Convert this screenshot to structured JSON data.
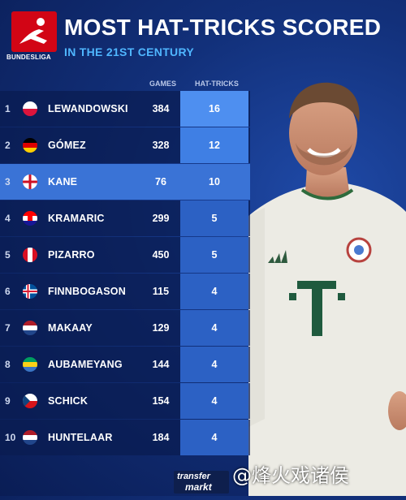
{
  "header": {
    "logo_text": "BUNDESLIGA",
    "title": "MOST HAT-TRICKS SCORED",
    "subtitle": "IN THE 21ST CENTURY"
  },
  "columns": {
    "games": "GAMES",
    "hat_tricks": "HAT-TRICKS"
  },
  "rows": [
    {
      "rank": "1",
      "name": "LEWANDOWSKI",
      "games": "384",
      "hat_tricks": "16",
      "country": "Poland"
    },
    {
      "rank": "2",
      "name": "GÓMEZ",
      "games": "328",
      "hat_tricks": "12",
      "country": "Germany"
    },
    {
      "rank": "3",
      "name": "KANE",
      "games": "76",
      "hat_tricks": "10",
      "country": "England"
    },
    {
      "rank": "4",
      "name": "KRAMARIC",
      "games": "299",
      "hat_tricks": "5",
      "country": "Croatia"
    },
    {
      "rank": "5",
      "name": "PIZARRO",
      "games": "450",
      "hat_tricks": "5",
      "country": "Peru"
    },
    {
      "rank": "6",
      "name": "FINNBOGASON",
      "games": "115",
      "hat_tricks": "4",
      "country": "Iceland"
    },
    {
      "rank": "7",
      "name": "MAKAAY",
      "games": "129",
      "hat_tricks": "4",
      "country": "Netherlands"
    },
    {
      "rank": "8",
      "name": "AUBAMEYANG",
      "games": "144",
      "hat_tricks": "4",
      "country": "Gabon"
    },
    {
      "rank": "9",
      "name": "SCHICK",
      "games": "154",
      "hat_tricks": "4",
      "country": "Czechia"
    },
    {
      "rank": "10",
      "name": "HUNTELAAR",
      "games": "184",
      "hat_tricks": "4",
      "country": "Netherlands"
    }
  ],
  "footer": {
    "source_logo_line1": "transfer",
    "source_logo_line2": "markt",
    "watermark": "@烽火戏诸侯"
  }
}
